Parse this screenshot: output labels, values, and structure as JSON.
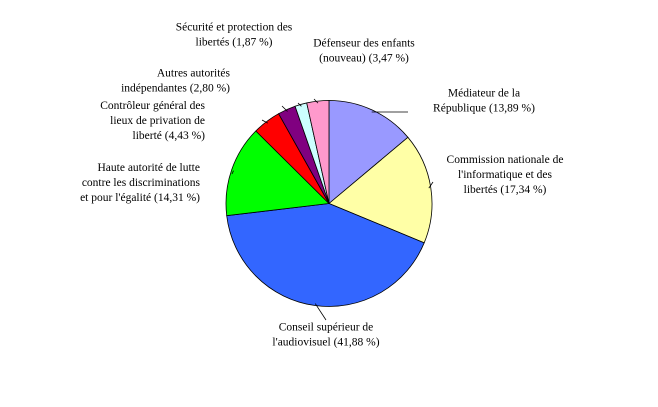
{
  "chart_data": {
    "type": "pie",
    "title": "",
    "slices": [
      {
        "label_lines": [
          "Médiateur de la",
          "République (13,89 %)"
        ],
        "value": 13.89,
        "color": "#9999ff"
      },
      {
        "label_lines": [
          "Commission nationale de",
          "l'informatique et des",
          "libertés (17,34 %)"
        ],
        "value": 17.34,
        "color": "#ffffa6"
      },
      {
        "label_lines": [
          "Conseil supérieur de",
          "l'audiovisuel (41,88 %)"
        ],
        "value": 41.88,
        "color": "#3366ff"
      },
      {
        "label_lines": [
          "Haute autorité de lutte",
          "contre les discriminations",
          "et pour l'égalité (14,31 %)"
        ],
        "value": 14.31,
        "color": "#00ff00"
      },
      {
        "label_lines": [
          "Contrôleur général des",
          "lieux de privation de",
          "liberté (4,43 %)"
        ],
        "value": 4.43,
        "color": "#ff0000"
      },
      {
        "label_lines": [
          "Autres autorités",
          "indépendantes (2,80 %)"
        ],
        "value": 2.8,
        "color": "#800080"
      },
      {
        "label_lines": [
          "Sécurité et protection des",
          "libertés (1,87 %)"
        ],
        "value": 1.87,
        "color": "#ccffff"
      },
      {
        "label_lines": [
          "Défenseur des enfants",
          "(nouveau) (3,47 %)"
        ],
        "value": 3.47,
        "color": "#ff99cc"
      }
    ]
  }
}
